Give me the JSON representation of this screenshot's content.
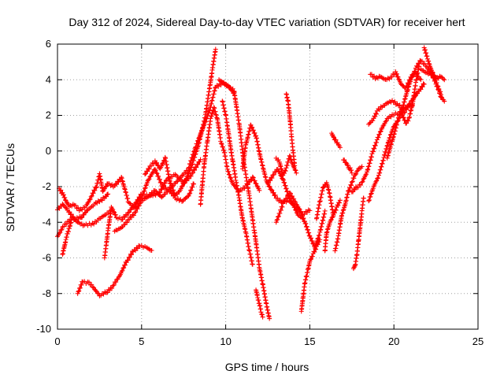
{
  "chart_data": {
    "type": "scatter",
    "title": "Day 312 of 2024, Sidereal Day-to-day VTEC variation (SDTVAR) for receiver hert",
    "xlabel": "GPS time / hours",
    "ylabel": "SDTVAR / TECUs",
    "xlim": [
      0,
      25
    ],
    "ylim": [
      -10,
      6
    ],
    "xticks": [
      0,
      5,
      10,
      15,
      20,
      25
    ],
    "yticks": [
      -10,
      -8,
      -6,
      -4,
      -2,
      0,
      2,
      4,
      6
    ],
    "grid": true,
    "marker": "+",
    "color": "#ff0000",
    "series": [
      {
        "x": [
          0.0,
          0.3,
          0.6,
          1.0,
          1.4,
          1.8,
          2.2,
          2.5,
          2.8,
          3.0
        ],
        "y": [
          -3.3,
          -3.0,
          -3.3,
          -3.8,
          -3.7,
          -3.3,
          -3.0,
          -2.8,
          -2.6,
          -2.4
        ]
      },
      {
        "x": [
          0.0,
          0.3,
          0.6,
          0.9,
          1.2,
          1.6,
          2.0,
          2.4,
          2.8,
          3.1
        ],
        "y": [
          -4.8,
          -4.3,
          -4.0,
          -3.8,
          -4.0,
          -4.2,
          -4.1,
          -3.9,
          -3.6,
          -3.4
        ]
      },
      {
        "x": [
          0.1,
          0.3,
          0.5,
          0.7,
          1.0,
          1.3,
          1.7,
          2.0,
          2.3,
          2.5,
          2.7,
          3.0,
          3.4,
          3.8,
          4.2,
          4.6,
          5.0,
          5.4,
          5.8,
          6.2,
          6.6,
          7.0,
          7.4,
          7.8,
          8.2,
          8.6,
          9.0,
          9.4,
          9.8,
          10.2,
          10.5
        ],
        "y": [
          -2.1,
          -2.4,
          -2.8,
          -3.1,
          -3.0,
          -3.3,
          -3.1,
          -2.6,
          -2.0,
          -1.3,
          -2.3,
          -1.8,
          -2.0,
          -1.5,
          -2.8,
          -3.2,
          -2.6,
          -1.6,
          -1.0,
          -1.9,
          -2.2,
          -1.8,
          -1.4,
          -1.0,
          0.2,
          1.2,
          2.2,
          3.6,
          3.8,
          3.6,
          3.2
        ]
      },
      {
        "x": [
          0.3,
          0.4,
          0.5,
          0.6,
          0.7,
          0.8
        ],
        "y": [
          -5.8,
          -5.4,
          -5.0,
          -4.6,
          -4.3,
          -4.0
        ]
      },
      {
        "x": [
          1.2,
          1.5,
          1.8,
          2.1,
          2.5,
          2.9,
          3.3,
          3.7,
          4.1,
          4.5,
          4.9,
          5.3,
          5.6
        ],
        "y": [
          -8.0,
          -7.3,
          -7.4,
          -7.6,
          -8.1,
          -7.9,
          -7.6,
          -7.0,
          -6.2,
          -5.6,
          -5.3,
          -5.4,
          -5.6
        ]
      },
      {
        "x": [
          2.8,
          3.0,
          3.2,
          3.5,
          3.8,
          4.2,
          4.6,
          5.0,
          5.4,
          5.8,
          6.2,
          6.6,
          7.0,
          7.4,
          7.8,
          8.1
        ],
        "y": [
          -6.0,
          -4.5,
          -3.2,
          -3.7,
          -3.8,
          -3.5,
          -3.0,
          -2.4,
          -2.5,
          -2.2,
          -2.6,
          -2.2,
          -2.6,
          -2.8,
          -2.5,
          -1.8
        ]
      },
      {
        "x": [
          3.4,
          3.8,
          4.2,
          4.6,
          5.0,
          5.5,
          6.0,
          6.5,
          7.0,
          7.5,
          8.0,
          8.5
        ],
        "y": [
          -4.5,
          -4.3,
          -3.9,
          -3.5,
          -2.8,
          -2.5,
          -2.4,
          -1.6,
          -1.3,
          -1.8,
          -1.3,
          -0.5
        ]
      },
      {
        "x": [
          5.2,
          5.5,
          5.8,
          6.1,
          6.4,
          6.7,
          7.0,
          7.3,
          7.6,
          8.0,
          8.4,
          8.8,
          9.2,
          9.4
        ],
        "y": [
          -1.3,
          -0.9,
          -0.6,
          -1.0,
          -0.4,
          -1.8,
          -2.5,
          -2.2,
          -1.6,
          -0.8,
          0.4,
          2.0,
          4.5,
          5.7
        ]
      },
      {
        "x": [
          8.5,
          8.7,
          8.9,
          9.1,
          9.3,
          9.5,
          9.7,
          9.9,
          10.1,
          10.4,
          10.8,
          11.2,
          11.6,
          12.0
        ],
        "y": [
          -3.0,
          -1.0,
          0.5,
          1.8,
          2.4,
          1.8,
          0.6,
          0.0,
          -1.0,
          -1.8,
          -2.3,
          -2.0,
          -1.5,
          -2.2
        ]
      },
      {
        "x": [
          9.6,
          9.9,
          10.2,
          10.5,
          10.8,
          11.1,
          11.4,
          11.7,
          12.0,
          12.2,
          12.4,
          12.6
        ],
        "y": [
          4.0,
          3.8,
          3.6,
          3.4,
          1.5,
          -0.8,
          -2.5,
          -4.5,
          -6.5,
          -7.5,
          -8.5,
          -9.4
        ]
      },
      {
        "x": [
          9.8,
          10.0,
          10.2,
          10.4,
          10.6,
          10.8,
          11.0,
          11.2,
          11.4,
          11.6
        ],
        "y": [
          2.8,
          2.0,
          0.8,
          -0.5,
          -1.6,
          -2.6,
          -3.8,
          -4.6,
          -5.6,
          -6.4
        ]
      },
      {
        "x": [
          11.0,
          11.2,
          11.5,
          11.8,
          12.1,
          12.4,
          12.7,
          13.0,
          13.4,
          13.8,
          14.2,
          14.6,
          15.0
        ],
        "y": [
          -1.0,
          0.4,
          1.5,
          0.8,
          -0.5,
          -1.6,
          -2.2,
          -2.6,
          -2.9,
          -2.8,
          -3.2,
          -3.6,
          -3.3
        ]
      },
      {
        "x": [
          11.8,
          11.9,
          12.0,
          12.1,
          12.2
        ],
        "y": [
          -7.8,
          -8.2,
          -8.6,
          -9.0,
          -9.3
        ]
      },
      {
        "x": [
          12.5,
          12.8,
          13.1,
          13.4,
          13.7,
          14.0,
          14.3,
          14.6
        ],
        "y": [
          -1.8,
          -1.4,
          -1.0,
          -1.6,
          -2.4,
          -3.0,
          -3.6,
          -3.8
        ]
      },
      {
        "x": [
          13.0,
          13.2,
          13.4,
          13.6,
          13.8,
          14.0,
          14.2
        ],
        "y": [
          -0.4,
          -0.6,
          -1.4,
          -1.0,
          -0.3,
          -0.8,
          -1.2
        ]
      },
      {
        "x": [
          13.0,
          13.4,
          13.8,
          14.1,
          14.4,
          14.7,
          15.0,
          15.3,
          15.6,
          15.9
        ],
        "y": [
          -4.0,
          -3.0,
          -2.4,
          -2.8,
          -3.3,
          -4.0,
          -4.8,
          -5.4,
          -4.6,
          -3.4
        ]
      },
      {
        "x": [
          13.6,
          13.7,
          13.8,
          13.9,
          14.0,
          14.1
        ],
        "y": [
          3.2,
          2.8,
          2.0,
          1.0,
          0.0,
          -0.8
        ]
      },
      {
        "x": [
          14.5,
          14.6,
          14.7,
          14.8,
          14.9,
          15.0,
          15.2,
          15.4,
          15.6
        ],
        "y": [
          -9.0,
          -8.2,
          -7.4,
          -7.0,
          -6.6,
          -6.2,
          -5.8,
          -5.4,
          -5.0
        ]
      },
      {
        "x": [
          15.4,
          15.6,
          15.8,
          16.0,
          16.2,
          16.4
        ],
        "y": [
          -3.8,
          -2.8,
          -2.0,
          -1.8,
          -2.5,
          -3.6
        ]
      },
      {
        "x": [
          15.9,
          16.0,
          16.2,
          16.4,
          16.6,
          16.8
        ],
        "y": [
          -5.6,
          -4.6,
          -4.0,
          -3.6,
          -3.2,
          -2.8
        ]
      },
      {
        "x": [
          16.3,
          16.4,
          16.5,
          16.6,
          16.7,
          16.8
        ],
        "y": [
          1.0,
          0.8,
          0.6,
          0.5,
          0.4,
          0.2
        ]
      },
      {
        "x": [
          16.5,
          16.7,
          16.9,
          17.1,
          17.3,
          17.5,
          17.7,
          17.9,
          18.1
        ],
        "y": [
          -5.6,
          -4.8,
          -3.6,
          -3.0,
          -2.2,
          -1.8,
          -1.3,
          -1.0,
          -0.9
        ]
      },
      {
        "x": [
          17.0,
          17.1,
          17.2,
          17.3,
          17.4,
          17.5
        ],
        "y": [
          -0.5,
          -0.6,
          -0.7,
          -0.9,
          -1.0,
          -1.2
        ]
      },
      {
        "x": [
          17.6,
          17.7,
          17.8,
          17.9,
          18.0,
          18.1,
          18.2
        ],
        "y": [
          -6.6,
          -6.4,
          -5.8,
          -5.0,
          -4.2,
          -3.4,
          -2.6
        ]
      },
      {
        "x": [
          17.5,
          17.8,
          18.1,
          18.4,
          18.7,
          19.0,
          19.3,
          19.6,
          19.9,
          20.2,
          20.5,
          20.8,
          21.1
        ],
        "y": [
          -2.3,
          -2.0,
          -1.8,
          -1.2,
          -0.2,
          0.6,
          1.3,
          1.8,
          2.0,
          2.1,
          2.3,
          2.5,
          2.6
        ]
      },
      {
        "x": [
          18.5,
          18.8,
          19.1,
          19.4,
          19.7,
          20.0,
          20.3,
          20.6,
          20.9,
          21.2,
          21.5,
          21.8
        ],
        "y": [
          -2.8,
          -2.0,
          -1.4,
          -0.4,
          0.6,
          1.4,
          1.8,
          2.2,
          2.6,
          3.0,
          3.4,
          3.8
        ]
      },
      {
        "x": [
          18.5,
          18.8,
          19.0,
          19.3,
          19.6,
          19.9,
          20.2,
          20.5
        ],
        "y": [
          1.5,
          1.8,
          2.2,
          2.5,
          2.7,
          2.8,
          2.6,
          2.4
        ]
      },
      {
        "x": [
          18.6,
          18.9,
          19.2,
          19.5,
          19.8,
          20.1,
          20.4,
          20.7,
          21.0,
          21.3,
          21.6
        ],
        "y": [
          4.3,
          4.1,
          4.2,
          4.0,
          4.1,
          4.4,
          3.8,
          3.5,
          4.1,
          4.4,
          4.0
        ]
      },
      {
        "x": [
          19.6,
          19.9,
          20.2,
          20.5,
          20.8,
          21.0,
          21.3,
          21.6,
          21.9,
          22.2,
          22.5,
          22.8
        ],
        "y": [
          -0.4,
          0.6,
          1.6,
          2.4,
          3.4,
          4.0,
          4.6,
          5.1,
          4.8,
          4.4,
          3.8,
          3.2
        ]
      },
      {
        "x": [
          20.5,
          20.7,
          20.9,
          21.1,
          21.3,
          21.5
        ],
        "y": [
          2.0,
          1.6,
          1.8,
          2.6,
          3.8,
          4.8
        ]
      },
      {
        "x": [
          21.8,
          22.0,
          22.2,
          22.4,
          22.6,
          22.8,
          23.0
        ],
        "y": [
          5.8,
          5.2,
          4.6,
          4.2,
          3.6,
          3.0,
          2.8
        ]
      },
      {
        "x": [
          21.6,
          21.9,
          22.2,
          22.5,
          22.8,
          23.0
        ],
        "y": [
          4.6,
          4.4,
          4.3,
          4.1,
          4.2,
          4.0
        ]
      }
    ]
  }
}
